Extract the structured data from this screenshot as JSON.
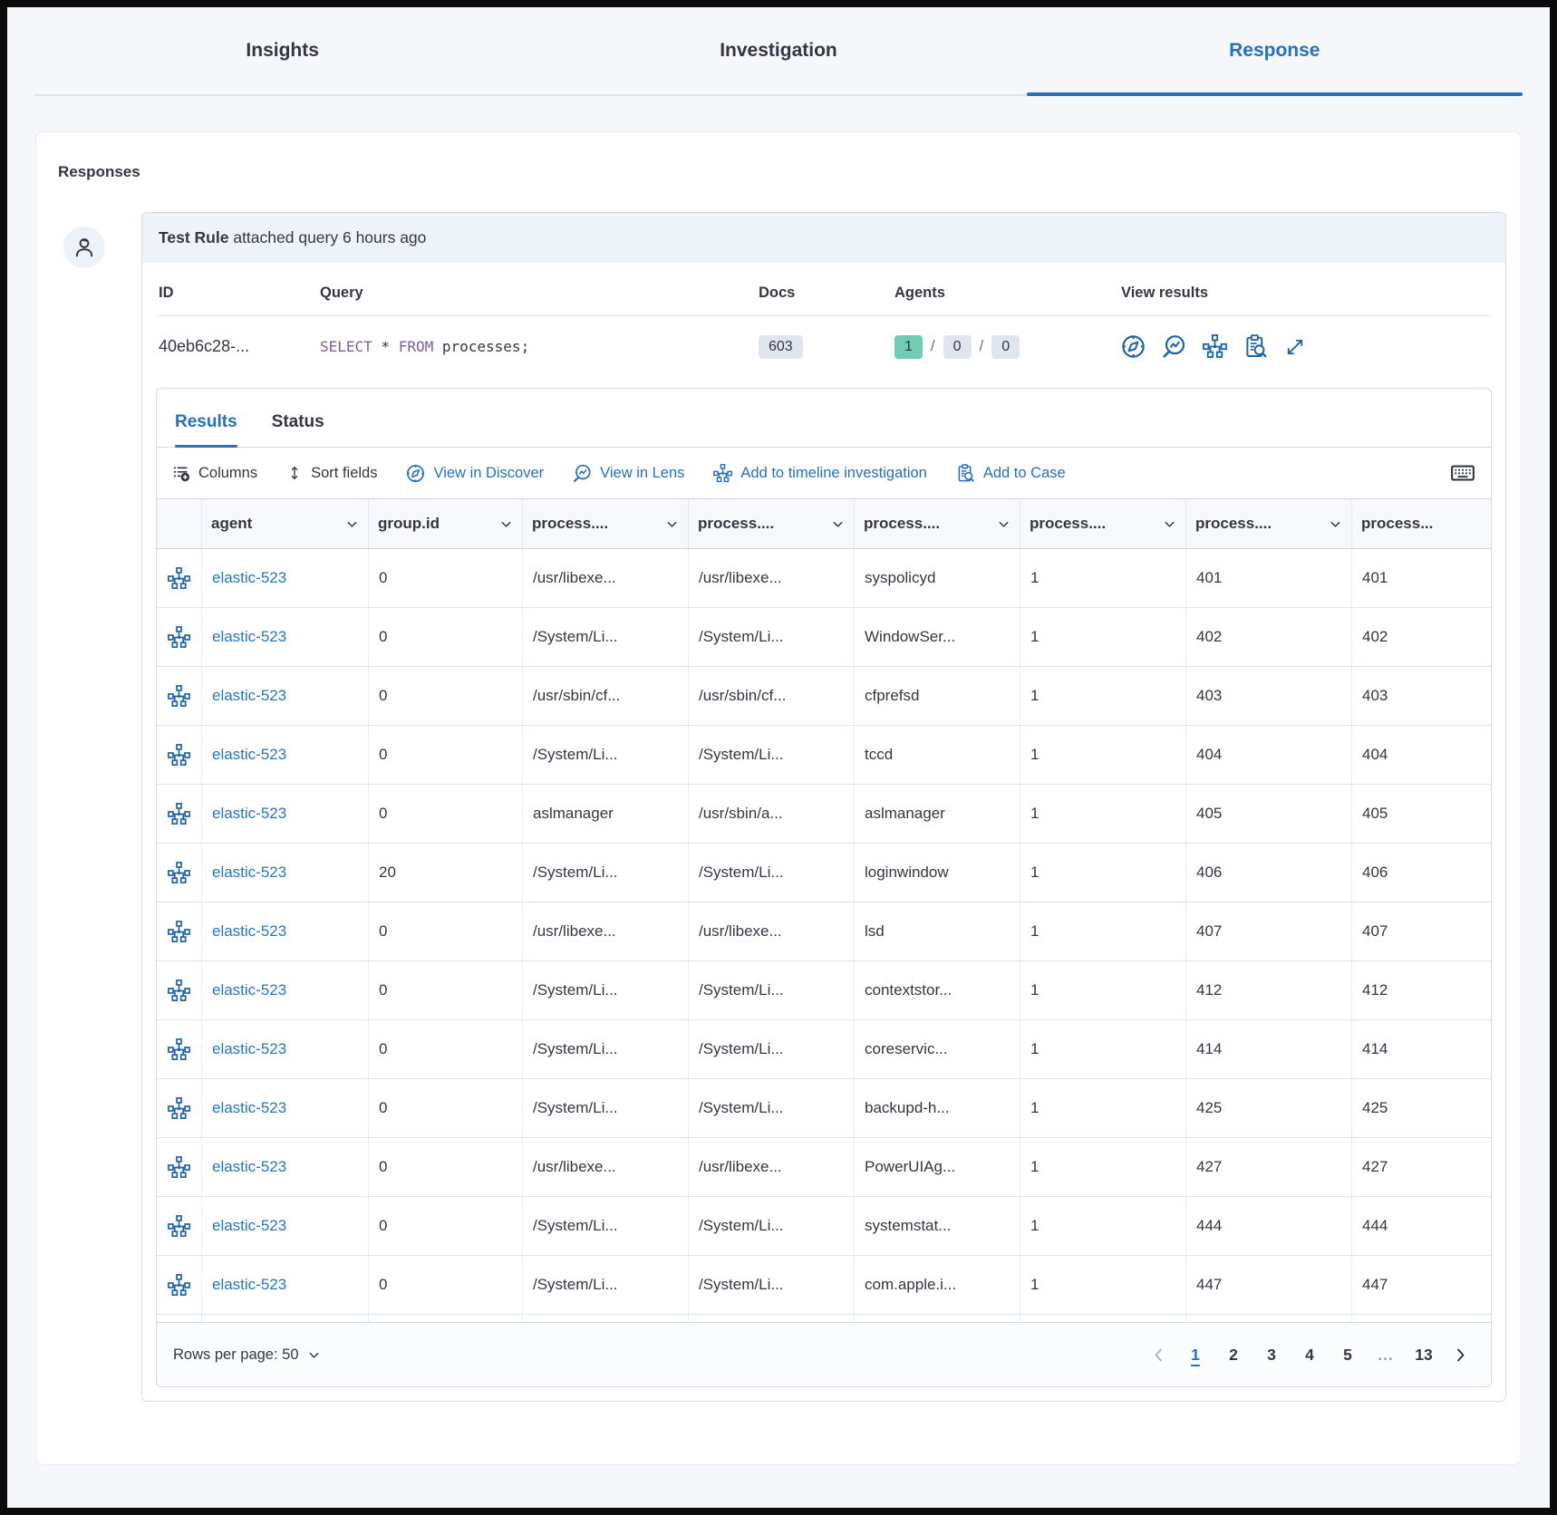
{
  "tabs": [
    {
      "label": "Insights",
      "active": false
    },
    {
      "label": "Investigation",
      "active": false
    },
    {
      "label": "Response",
      "active": true
    }
  ],
  "panel": {
    "title": "Responses"
  },
  "response": {
    "header": {
      "rule": "Test Rule",
      "rest": " attached query 6 hours ago"
    },
    "meta": {
      "columns": {
        "id": "ID",
        "query": "Query",
        "docs": "Docs",
        "agents": "Agents",
        "view": "View results"
      },
      "id": "40eb6c28-...",
      "query": {
        "kw1": "SELECT",
        "star": " * ",
        "kw2": "FROM",
        "rest": " processes;"
      },
      "docs": "603",
      "agents": [
        "1",
        "0",
        "0"
      ],
      "agents_separator": "/",
      "view_icons": [
        "discover",
        "lens",
        "analyzer",
        "case",
        "open-in-new"
      ]
    },
    "results": {
      "tabs": [
        "Results",
        "Status"
      ],
      "toolbar": {
        "columns": "Columns",
        "sort": "Sort fields",
        "discover": "View in Discover",
        "lens": "View in Lens",
        "timeline": "Add to timeline investigation",
        "case": "Add to Case",
        "keyboard_icon": "keyboard"
      },
      "grid": {
        "headers": [
          {
            "label": "agent",
            "chevron": true
          },
          {
            "label": "group.id",
            "chevron": true
          },
          {
            "label": "process....",
            "chevron": true
          },
          {
            "label": "process....",
            "chevron": true
          },
          {
            "label": "process....",
            "chevron": true
          },
          {
            "label": "process....",
            "chevron": true
          },
          {
            "label": "process....",
            "chevron": true
          },
          {
            "label": "process...",
            "chevron": false
          }
        ],
        "row_icon": "analyzer",
        "rows": [
          [
            "elastic-523",
            "0",
            "/usr/libexe...",
            "/usr/libexe...",
            "syspolicyd",
            "1",
            "401",
            "401"
          ],
          [
            "elastic-523",
            "0",
            "/System/Li...",
            "/System/Li...",
            "WindowSer...",
            "1",
            "402",
            "402"
          ],
          [
            "elastic-523",
            "0",
            "/usr/sbin/cf...",
            "/usr/sbin/cf...",
            "cfprefsd",
            "1",
            "403",
            "403"
          ],
          [
            "elastic-523",
            "0",
            "/System/Li...",
            "/System/Li...",
            "tccd",
            "1",
            "404",
            "404"
          ],
          [
            "elastic-523",
            "0",
            "aslmanager",
            "/usr/sbin/a...",
            "aslmanager",
            "1",
            "405",
            "405"
          ],
          [
            "elastic-523",
            "20",
            "/System/Li...",
            "/System/Li...",
            "loginwindow",
            "1",
            "406",
            "406"
          ],
          [
            "elastic-523",
            "0",
            "/usr/libexe...",
            "/usr/libexe...",
            "lsd",
            "1",
            "407",
            "407"
          ],
          [
            "elastic-523",
            "0",
            "/System/Li...",
            "/System/Li...",
            "contextstor...",
            "1",
            "412",
            "412"
          ],
          [
            "elastic-523",
            "0",
            "/System/Li...",
            "/System/Li...",
            "coreservic...",
            "1",
            "414",
            "414"
          ],
          [
            "elastic-523",
            "0",
            "/System/Li...",
            "/System/Li...",
            "backupd-h...",
            "1",
            "425",
            "425"
          ],
          [
            "elastic-523",
            "0",
            "/usr/libexe...",
            "/usr/libexe...",
            "PowerUIAg...",
            "1",
            "427",
            "427"
          ],
          [
            "elastic-523",
            "0",
            "/System/Li...",
            "/System/Li...",
            "systemstat...",
            "1",
            "444",
            "444"
          ],
          [
            "elastic-523",
            "0",
            "/System/Li...",
            "/System/Li...",
            "com.apple.i...",
            "1",
            "447",
            "447"
          ]
        ]
      },
      "footer": {
        "rows_per_page": "Rows per page: 50",
        "pagination": {
          "prev_enabled": false,
          "pages": [
            "1",
            "2",
            "3",
            "4",
            "5",
            "...",
            "13"
          ],
          "active": "1"
        }
      }
    }
  },
  "colors": {
    "accent_blue": "#2470c5",
    "icon_blue": "#2064ad",
    "link_blue": "#2476c7",
    "badge_gray": "#e0e5ee",
    "badge_teal": "#6dccb1",
    "sql_keyword_purple": "#7b5fa0",
    "text": "#343741",
    "border": "#d3dae6"
  }
}
